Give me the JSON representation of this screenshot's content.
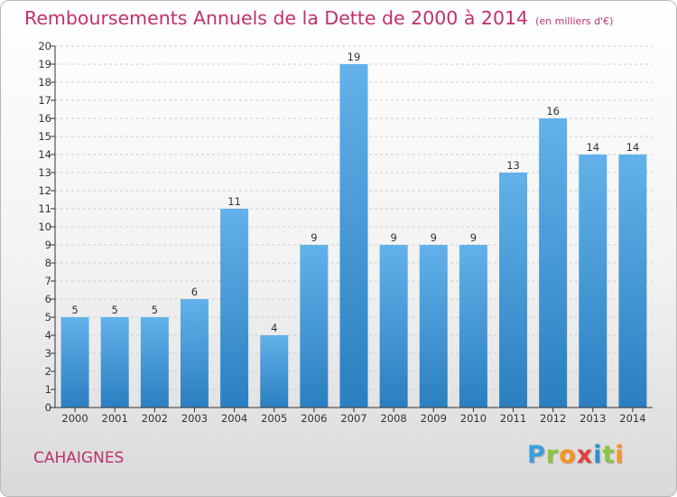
{
  "header": {
    "title": "Remboursements Annuels de la Dette de 2000 à 2014",
    "unit": "(en milliers d'€)"
  },
  "commune": "CAHAIGNES",
  "logo": {
    "text": "Proxiti"
  },
  "colors": {
    "title": "#c0306e",
    "bar_light": "#62b1ea",
    "bar_dark": "#2b7fc0",
    "axis": "#333333",
    "grid": "#cfcfcf"
  },
  "chart_data": {
    "type": "bar",
    "title": "Remboursements Annuels de la Dette de 2000 à 2014",
    "xlabel": "",
    "ylabel": "",
    "categories": [
      "2000",
      "2001",
      "2002",
      "2003",
      "2004",
      "2005",
      "2006",
      "2007",
      "2008",
      "2009",
      "2010",
      "2011",
      "2012",
      "2013",
      "2014"
    ],
    "values": [
      5,
      5,
      5,
      6,
      11,
      4,
      9,
      19,
      9,
      9,
      9,
      13,
      16,
      14,
      14
    ],
    "ylim": [
      0,
      20
    ],
    "yticks": [
      0,
      1,
      2,
      3,
      4,
      5,
      6,
      7,
      8,
      9,
      10,
      11,
      12,
      13,
      14,
      15,
      16,
      17,
      18,
      19,
      20
    ],
    "grid": true,
    "data_labels": true,
    "legend": "none"
  }
}
